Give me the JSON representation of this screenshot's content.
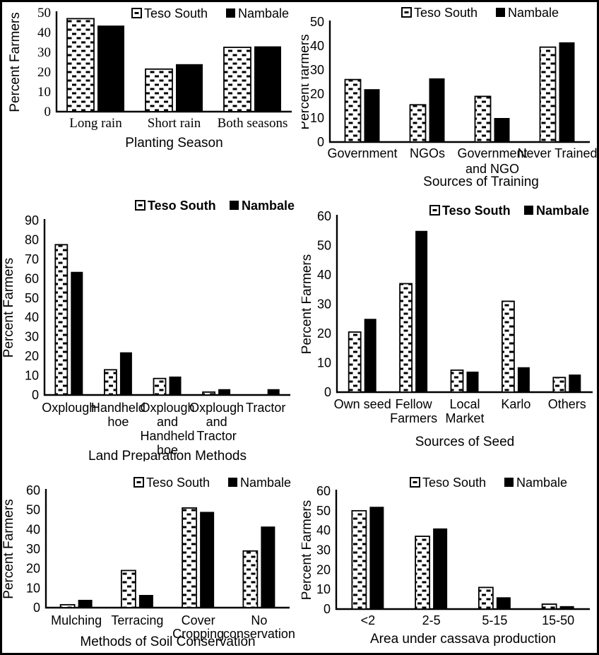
{
  "figure": {
    "description": "Six paired bar charts comparing farmer survey percentages in Teso South and Nambale",
    "series_names": [
      "Teso South",
      "Nambale"
    ],
    "colors": {
      "foreground": "#000000",
      "background": "#ffffff",
      "nambale_bar": "#000000",
      "teso_south_bar_fill": "#ffffff",
      "teso_south_bar_pattern": "#000000"
    }
  },
  "chart_data": [
    {
      "type": "bar",
      "xlabel": "Planting Season",
      "ylabel": "Percent Farmers",
      "ylim": [
        0,
        50
      ],
      "ytick_step": 10,
      "grid": false,
      "legend_position": "top",
      "categories": [
        [
          "Long rain"
        ],
        [
          "Short rain"
        ],
        [
          "Both seasons"
        ]
      ],
      "series": [
        {
          "name": "Teso South",
          "values": [
            47,
            21.5,
            32.5
          ]
        },
        {
          "name": "Nambale",
          "values": [
            43.5,
            24,
            33
          ]
        }
      ]
    },
    {
      "type": "bar",
      "xlabel": "Sources of Training",
      "ylabel": "Percent farmers",
      "ylim": [
        0,
        50
      ],
      "ytick_step": 10,
      "grid": false,
      "legend_position": "top",
      "categories": [
        [
          "Government"
        ],
        [
          "NGOs"
        ],
        [
          "Government",
          "and NGO"
        ],
        [
          "Never Trained"
        ]
      ],
      "series": [
        {
          "name": "Teso South",
          "values": [
            26,
            15.5,
            19,
            39.5
          ]
        },
        {
          "name": "Nambale",
          "values": [
            22,
            26.5,
            10,
            41.5
          ]
        }
      ]
    },
    {
      "type": "bar",
      "xlabel": "Land Preparation Methods",
      "ylabel": "Percent Farmers",
      "ylim": [
        0,
        90
      ],
      "ytick_step": 10,
      "grid": false,
      "legend_position": "top",
      "categories": [
        [
          "Oxplough"
        ],
        [
          "Handheld",
          "hoe"
        ],
        [
          "Oxplough",
          "and",
          "Handheld",
          "hoe"
        ],
        [
          "Oxplough",
          "and",
          "Tractor"
        ],
        [
          "Tractor"
        ]
      ],
      "series": [
        {
          "name": "Teso South",
          "values": [
            77.5,
            13,
            8.5,
            1.5,
            0
          ]
        },
        {
          "name": "Nambale",
          "values": [
            63.5,
            22,
            9.5,
            3,
            3
          ]
        }
      ]
    },
    {
      "type": "bar",
      "xlabel": "Sources of Seed",
      "ylabel": "Percent Farmers",
      "ylim": [
        0,
        60
      ],
      "ytick_step": 10,
      "grid": false,
      "legend_position": "top",
      "categories": [
        [
          "Own seed"
        ],
        [
          "Fellow",
          "Farmers"
        ],
        [
          "Local",
          "Market"
        ],
        [
          "Karlo"
        ],
        [
          "Others"
        ]
      ],
      "series": [
        {
          "name": "Teso South",
          "values": [
            20.5,
            37,
            7.5,
            31,
            5
          ]
        },
        {
          "name": "Nambale",
          "values": [
            25,
            55,
            7,
            8.5,
            6
          ]
        }
      ]
    },
    {
      "type": "bar",
      "xlabel": "Methods of Soil Conservation",
      "ylabel": "Percent Farmers",
      "ylim": [
        0,
        60
      ],
      "ytick_step": 10,
      "grid": false,
      "legend_position": "top",
      "categories": [
        [
          "Mulching"
        ],
        [
          "Terracing"
        ],
        [
          "Cover",
          "Cropping"
        ],
        [
          "No",
          "conservation"
        ]
      ],
      "series": [
        {
          "name": "Teso South",
          "values": [
            1.5,
            19,
            51,
            29
          ]
        },
        {
          "name": "Nambale",
          "values": [
            4,
            6.5,
            49,
            41.5
          ]
        }
      ]
    },
    {
      "type": "bar",
      "xlabel": "Area under cassava production",
      "ylabel": "Percent Farmers",
      "ylim": [
        0,
        60
      ],
      "ytick_step": 10,
      "grid": false,
      "legend_position": "top",
      "categories": [
        [
          "<2"
        ],
        [
          "2-5"
        ],
        [
          "5-15"
        ],
        [
          "15-50"
        ]
      ],
      "series": [
        {
          "name": "Teso South",
          "values": [
            50,
            37,
            11,
            2.5
          ]
        },
        {
          "name": "Nambale",
          "values": [
            52,
            41,
            6,
            1.5
          ]
        }
      ]
    }
  ]
}
